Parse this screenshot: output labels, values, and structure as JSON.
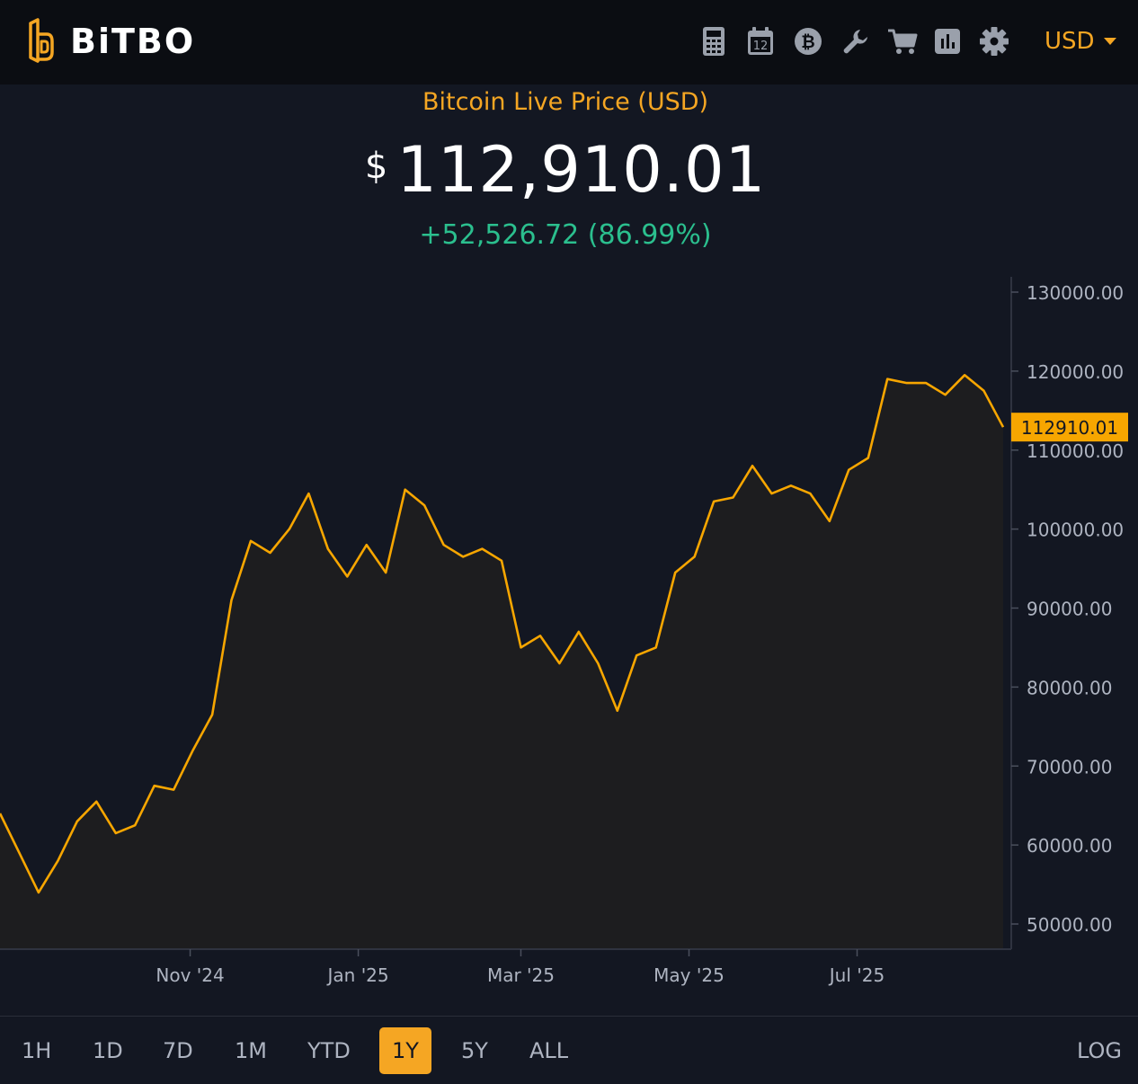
{
  "brand": {
    "name": "BiTBO"
  },
  "toolbar": {
    "icons": [
      "calculator-icon",
      "calendar-icon",
      "bitcoin-icon",
      "wrench-icon",
      "cart-icon",
      "bar-chart-icon",
      "gear-icon"
    ],
    "calendar_day": "12",
    "currency": "USD"
  },
  "header": {
    "title": "Bitcoin Live Price (USD)",
    "currency_symbol": "$",
    "price": "112,910.01",
    "change": "+52,526.72 (86.99%)"
  },
  "chart_data": {
    "type": "area",
    "y_tick_labels": [
      "130000.00",
      "120000.00",
      "110000.00",
      "100000.00",
      "90000.00",
      "80000.00",
      "70000.00",
      "60000.00",
      "50000.00"
    ],
    "x_tick_labels": [
      "Nov '24",
      "Jan '25",
      "Mar '25",
      "May '25",
      "Jul '25"
    ],
    "ylim": [
      50000,
      130000
    ],
    "current_value_label": "112910.01",
    "grid": false,
    "colors": {
      "line": "#f7a600",
      "fill": "#1d1d1f",
      "label_bg": "#f7a600"
    },
    "series": [
      {
        "x": [
          "2024-08-24",
          "2024-08-31",
          "2024-09-07",
          "2024-09-14",
          "2024-09-21",
          "2024-09-28",
          "2024-10-05",
          "2024-10-12",
          "2024-10-19",
          "2024-10-26",
          "2024-11-02",
          "2024-11-09",
          "2024-11-16",
          "2024-11-23",
          "2024-11-30",
          "2024-12-07",
          "2024-12-14",
          "2024-12-21",
          "2024-12-28",
          "2025-01-04",
          "2025-01-11",
          "2025-01-18",
          "2025-01-25",
          "2025-02-01",
          "2025-02-08",
          "2025-02-15",
          "2025-02-22",
          "2025-03-01",
          "2025-03-08",
          "2025-03-15",
          "2025-03-22",
          "2025-03-29",
          "2025-04-05",
          "2025-04-12",
          "2025-04-19",
          "2025-04-26",
          "2025-05-03",
          "2025-05-10",
          "2025-05-17",
          "2025-05-24",
          "2025-05-31",
          "2025-06-07",
          "2025-06-14",
          "2025-06-21",
          "2025-06-28",
          "2025-07-05",
          "2025-07-12",
          "2025-07-19",
          "2025-07-26",
          "2025-08-02",
          "2025-08-09",
          "2025-08-16",
          "2025-08-23"
        ],
        "y": [
          64000,
          59000,
          54000,
          58000,
          63000,
          65500,
          61500,
          62500,
          67500,
          67000,
          72000,
          76500,
          91000,
          98500,
          97000,
          100000,
          104500,
          97500,
          94000,
          98000,
          94500,
          105000,
          103000,
          98000,
          96500,
          97500,
          96000,
          85000,
          86500,
          83000,
          87000,
          83000,
          77000,
          84000,
          85000,
          94500,
          96500,
          103500,
          104000,
          108000,
          104500,
          105500,
          104500,
          101000,
          107500,
          109000,
          119000,
          118500,
          118500,
          117000,
          119500,
          117500,
          112910.01
        ]
      }
    ]
  },
  "range": {
    "buttons": [
      "1H",
      "1D",
      "7D",
      "1M",
      "YTD",
      "1Y",
      "5Y",
      "ALL"
    ],
    "active": "1Y",
    "log_label": "LOG"
  }
}
